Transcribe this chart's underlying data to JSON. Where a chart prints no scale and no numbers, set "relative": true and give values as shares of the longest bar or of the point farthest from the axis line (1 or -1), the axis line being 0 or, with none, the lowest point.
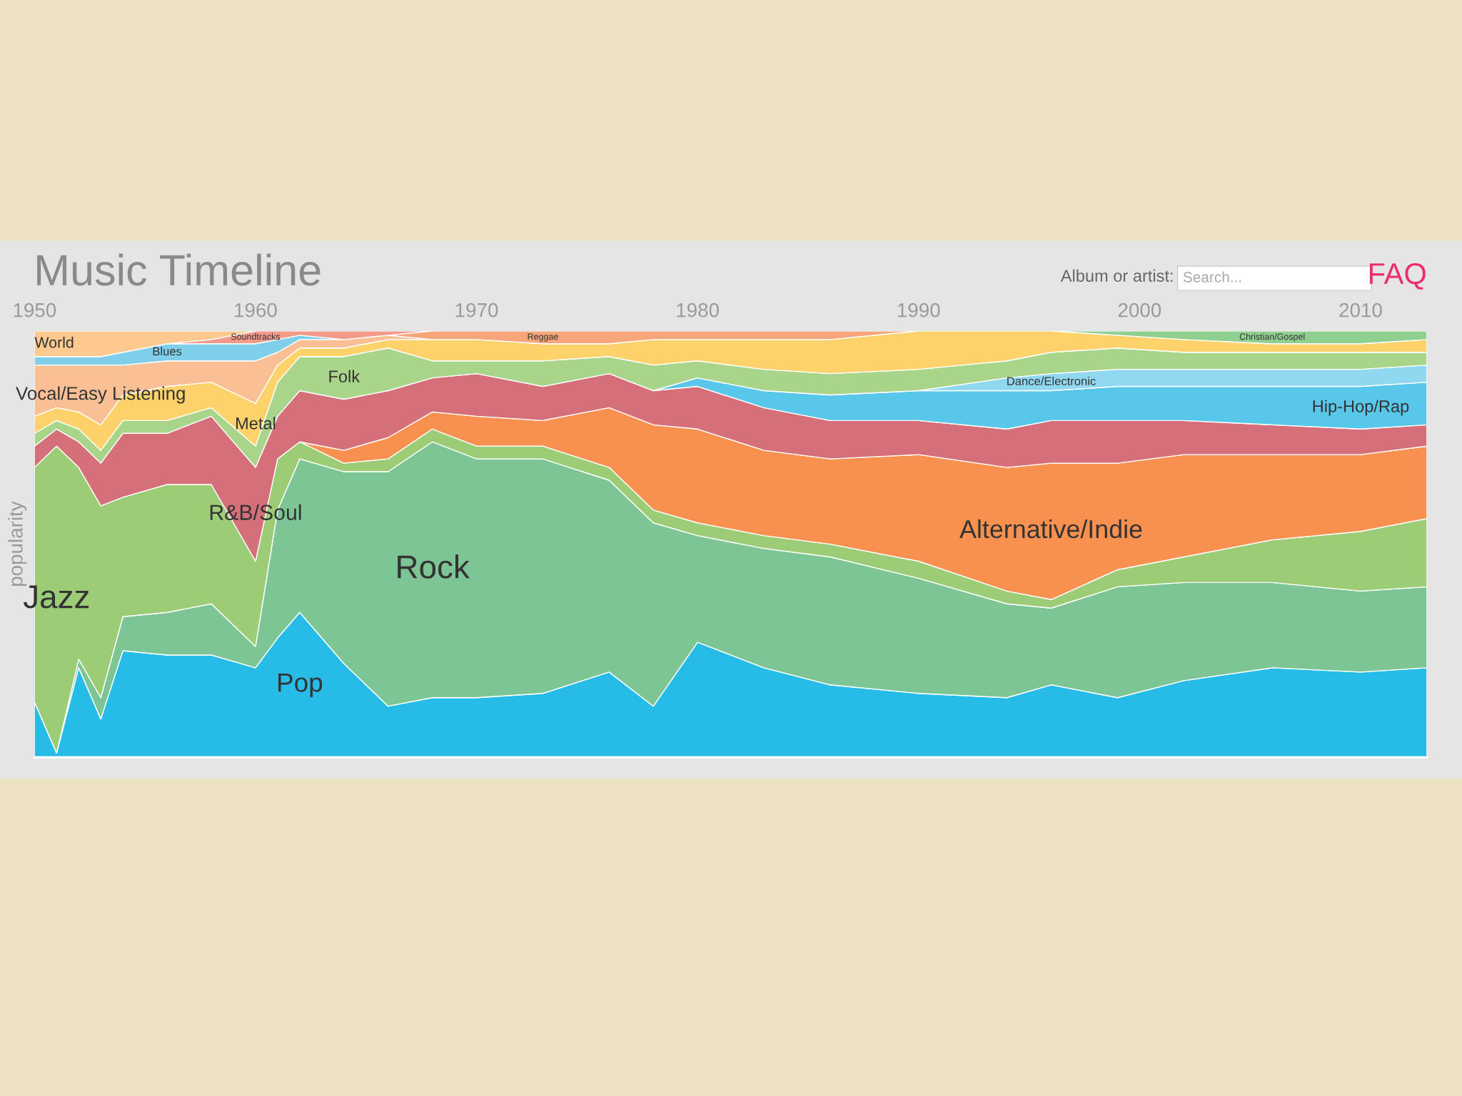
{
  "chart_data": {
    "type": "area",
    "stacked": true,
    "relative": true,
    "title": "Music Timeline",
    "ylabel": "popularity",
    "annotations": [
      "Album or artist:",
      "Search...",
      "FAQ"
    ],
    "x": [
      1950,
      1951,
      1952,
      1953,
      1954,
      1956,
      1958,
      1960,
      1961,
      1962,
      1964,
      1966,
      1968,
      1970,
      1973,
      1976,
      1978,
      1980,
      1983,
      1986,
      1990,
      1994,
      1996,
      1999,
      2002,
      2006,
      2010,
      2013
    ],
    "xlim": [
      1950,
      2013
    ],
    "xticks": [
      1950,
      1960,
      1970,
      1980,
      1990,
      2000,
      2010
    ],
    "tick_labels": "x",
    "grid": false,
    "legend": false,
    "series": [
      {
        "name": "Pop",
        "color": "#27bce8",
        "values": [
          0.13,
          0.01,
          0.21,
          0.09,
          0.25,
          0.24,
          0.24,
          0.21,
          0.28,
          0.34,
          0.22,
          0.12,
          0.14,
          0.14,
          0.15,
          0.2,
          0.12,
          0.27,
          0.21,
          0.17,
          0.15,
          0.14,
          0.17,
          0.14,
          0.18,
          0.21,
          0.2,
          0.21
        ]
      },
      {
        "name": "Rock",
        "color": "#7dc595",
        "values": [
          0,
          0,
          0.02,
          0.05,
          0.08,
          0.1,
          0.12,
          0.05,
          0.3,
          0.36,
          0.45,
          0.55,
          0.6,
          0.56,
          0.55,
          0.45,
          0.43,
          0.25,
          0.28,
          0.3,
          0.27,
          0.22,
          0.18,
          0.26,
          0.23,
          0.2,
          0.19,
          0.19
        ]
      },
      {
        "name": "Jazz",
        "color": "#9ccd76",
        "values": [
          0.55,
          0.72,
          0.45,
          0.45,
          0.28,
          0.3,
          0.28,
          0.2,
          0.12,
          0.04,
          0.02,
          0.03,
          0.03,
          0.03,
          0.03,
          0.03,
          0.03,
          0.03,
          0.03,
          0.03,
          0.04,
          0.03,
          0.02,
          0.04,
          0.06,
          0.1,
          0.14,
          0.16
        ]
      },
      {
        "name": "Alternative/Indie",
        "color": "#f8904f",
        "values": [
          null,
          null,
          null,
          null,
          null,
          null,
          null,
          null,
          null,
          0,
          0.03,
          0.05,
          0.04,
          0.07,
          0.06,
          0.14,
          0.2,
          0.22,
          0.2,
          0.2,
          0.25,
          0.29,
          0.32,
          0.25,
          0.24,
          0.2,
          0.18,
          0.17
        ]
      },
      {
        "name": "R&B/Soul",
        "color": "#d5707a",
        "values": [
          0.05,
          0.04,
          0.06,
          0.1,
          0.15,
          0.12,
          0.16,
          0.22,
          0.1,
          0.12,
          0.12,
          0.11,
          0.08,
          0.1,
          0.08,
          0.08,
          0.08,
          0.1,
          0.1,
          0.09,
          0.08,
          0.09,
          0.1,
          0.1,
          0.08,
          0.07,
          0.06,
          0.05
        ]
      },
      {
        "name": "Hip-Hop/Rap",
        "color": "#58c7ea",
        "values": [
          null,
          null,
          null,
          null,
          null,
          null,
          null,
          null,
          null,
          null,
          null,
          null,
          null,
          null,
          null,
          null,
          0,
          0.02,
          0.04,
          0.06,
          0.07,
          0.09,
          0.07,
          0.08,
          0.08,
          0.09,
          0.1,
          0.1
        ]
      },
      {
        "name": "Dance/Electronic",
        "color": "#8fd8f0",
        "values": [
          null,
          null,
          null,
          null,
          null,
          null,
          null,
          null,
          null,
          null,
          null,
          null,
          null,
          null,
          null,
          null,
          null,
          null,
          null,
          null,
          0,
          0.03,
          0.04,
          0.04,
          0.04,
          0.04,
          0.04,
          0.04
        ]
      },
      {
        "name": "Folk",
        "color": "#a8d58a",
        "values": [
          0.03,
          0.02,
          0.03,
          0.03,
          0.03,
          0.03,
          0.02,
          0.05,
          0.08,
          0.08,
          0.1,
          0.1,
          0.04,
          0.03,
          0.06,
          0.04,
          0.06,
          0.04,
          0.05,
          0.05,
          0.05,
          0.04,
          0.05,
          0.05,
          0.04,
          0.04,
          0.04,
          0.03
        ]
      },
      {
        "name": "Metal",
        "color": "#fdd26b",
        "values": [
          0.04,
          0.03,
          0.04,
          0.06,
          0.06,
          0.08,
          0.06,
          0.1,
          0.04,
          0.02,
          0.02,
          0.02,
          0.05,
          0.05,
          0.04,
          0.03,
          0.06,
          0.05,
          0.07,
          0.08,
          0.09,
          0.07,
          0.05,
          0.03,
          0.03,
          0.02,
          0.02,
          0.03
        ]
      },
      {
        "name": "Vocal/Easy Listening",
        "color": "#fbbf95",
        "values": [
          0.12,
          0.1,
          0.11,
          0.14,
          0.07,
          0.06,
          0.05,
          0.1,
          0.03,
          0.02,
          0.02,
          0.01,
          0,
          null,
          null,
          null,
          null,
          null,
          null,
          null,
          null,
          null,
          null,
          null,
          null,
          null,
          null,
          null
        ]
      },
      {
        "name": "Blues",
        "color": "#7fcfea",
        "values": [
          0.02,
          0.02,
          0.02,
          0.02,
          0.03,
          0.04,
          0.04,
          0.04,
          0.03,
          0.01,
          0,
          null,
          null,
          null,
          null,
          null,
          null,
          null,
          null,
          null,
          null,
          null,
          null,
          null,
          null,
          null,
          null,
          null
        ]
      },
      {
        "name": "Reggae",
        "color": "#f7a57a",
        "values": [
          null,
          null,
          null,
          null,
          null,
          null,
          null,
          null,
          null,
          null,
          null,
          0,
          0.02,
          0.02,
          0.03,
          0.03,
          0.02,
          0.02,
          0.02,
          0.02,
          0,
          null,
          null,
          null,
          null,
          null,
          null,
          null
        ]
      },
      {
        "name": "Soundtracks",
        "color": "#f39a8a",
        "values": [
          null,
          null,
          null,
          null,
          null,
          0,
          0.01,
          0.03,
          0.02,
          0.01,
          0.02,
          0.01,
          0,
          null,
          null,
          null,
          null,
          null,
          null,
          null,
          null,
          null,
          null,
          null,
          null,
          null,
          null,
          null
        ]
      },
      {
        "name": "World",
        "color": "#fdc98f",
        "values": [
          0.06,
          0.06,
          0.06,
          0.06,
          0.05,
          0.03,
          0.02,
          0,
          null,
          null,
          null,
          null,
          null,
          null,
          null,
          null,
          null,
          null,
          null,
          null,
          null,
          null,
          null,
          null,
          null,
          null,
          null,
          null
        ]
      },
      {
        "name": "Christian/Gospel",
        "color": "#8fcf8f",
        "values": [
          null,
          null,
          null,
          null,
          null,
          null,
          null,
          null,
          null,
          null,
          null,
          null,
          null,
          null,
          null,
          null,
          null,
          null,
          null,
          null,
          null,
          null,
          0,
          0.01,
          0.02,
          0.03,
          0.03,
          0.02
        ]
      }
    ]
  }
}
